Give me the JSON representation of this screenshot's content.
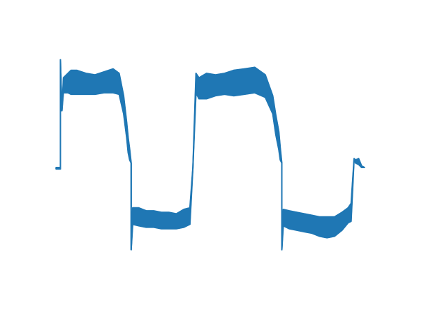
{
  "chart_data": {
    "type": "line",
    "title": "",
    "xlabel": "",
    "ylabel": "",
    "axes_visible": false,
    "grid": false,
    "legend": "none",
    "xlim": [
      0,
      2.3
    ],
    "ylim": [
      -0.85,
      0.85
    ],
    "color": "#1f77b4",
    "series": [
      {
        "name": "",
        "x": [
          0.0,
          0.03,
          0.03,
          0.04,
          0.05,
          0.08,
          0.1,
          0.14,
          0.2,
          0.26,
          0.32,
          0.38,
          0.42,
          0.45,
          0.47,
          0.48,
          0.49,
          0.5,
          0.5,
          0.51,
          0.55,
          0.6,
          0.65,
          0.7,
          0.75,
          0.8,
          0.85,
          0.89,
          0.91,
          0.93,
          0.95,
          1.0,
          1.06,
          1.12,
          1.18,
          1.25,
          1.32,
          1.39,
          1.44,
          1.46,
          1.48,
          1.49,
          1.5,
          1.5,
          1.51,
          1.55,
          1.6,
          1.65,
          1.7,
          1.75,
          1.8,
          1.85,
          1.9,
          1.94,
          1.96,
          1.98,
          1.99,
          2.01,
          2.03,
          2.05
        ],
        "y_upper": [
          0.0,
          0.0,
          0.72,
          0.38,
          0.6,
          0.63,
          0.65,
          0.65,
          0.63,
          0.62,
          0.64,
          0.66,
          0.63,
          0.48,
          0.3,
          0.2,
          0.12,
          0.03,
          -0.55,
          -0.27,
          -0.27,
          -0.29,
          -0.29,
          -0.3,
          -0.3,
          -0.31,
          -0.28,
          -0.27,
          0.0,
          0.63,
          0.6,
          0.63,
          0.62,
          0.63,
          0.65,
          0.66,
          0.67,
          0.62,
          0.48,
          0.35,
          0.24,
          0.13,
          0.03,
          -0.55,
          -0.28,
          -0.29,
          -0.3,
          -0.31,
          -0.32,
          -0.33,
          -0.33,
          -0.33,
          -0.3,
          -0.27,
          -0.24,
          0.06,
          0.05,
          0.06,
          0.01,
          0.0
        ],
        "y_lower": [
          -0.01,
          -0.01,
          0.72,
          0.38,
          0.5,
          0.5,
          0.49,
          0.49,
          0.49,
          0.49,
          0.5,
          0.5,
          0.49,
          0.36,
          0.2,
          0.1,
          0.05,
          0.03,
          -0.55,
          -0.38,
          -0.39,
          -0.4,
          -0.4,
          -0.41,
          -0.41,
          -0.41,
          -0.4,
          -0.38,
          0.0,
          0.5,
          0.46,
          0.46,
          0.48,
          0.49,
          0.48,
          0.49,
          0.5,
          0.47,
          0.36,
          0.22,
          0.12,
          0.05,
          0.03,
          -0.55,
          -0.39,
          -0.41,
          -0.42,
          -0.43,
          -0.44,
          -0.46,
          -0.47,
          -0.46,
          -0.42,
          -0.37,
          -0.36,
          0.06,
          0.03,
          0.02,
          0.0,
          0.0
        ]
      }
    ]
  }
}
